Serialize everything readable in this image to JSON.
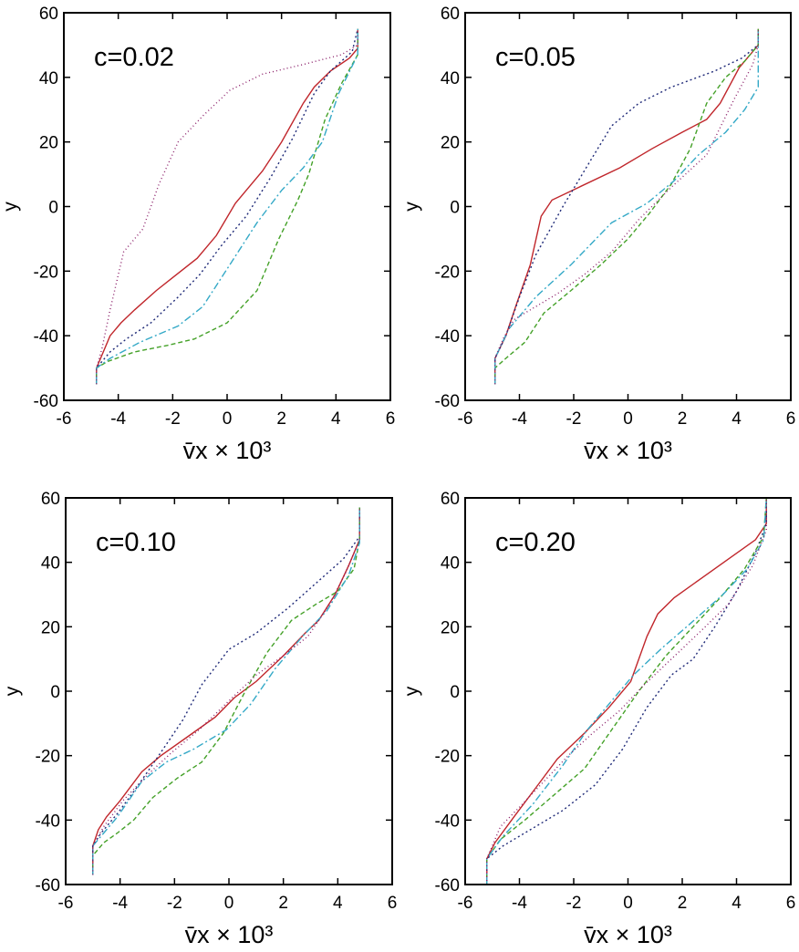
{
  "chart_data": [
    {
      "type": "line",
      "annotation": "c=0.02",
      "xlabel": "v̄x × 10³",
      "ylabel": "y",
      "xlim": [
        -6,
        6
      ],
      "ylim": [
        -60,
        60
      ],
      "xticks": [
        -6,
        -4,
        -2,
        0,
        2,
        4,
        6
      ],
      "yticks": [
        -60,
        -40,
        -20,
        0,
        20,
        40,
        60
      ],
      "series": [
        {
          "name": "red",
          "color": "#c0262b",
          "dash": "",
          "x": [
            -4.8,
            -4.8,
            -4.6,
            -4.3,
            -3.9,
            -3.4,
            -2.6,
            -2.0,
            -1.1,
            -0.4,
            0.3,
            0.7,
            1.3,
            2.0,
            2.8,
            3.2,
            3.8,
            4.5,
            4.8,
            4.8
          ],
          "y": [
            -55,
            -50,
            -46,
            -40,
            -36,
            -32,
            -26,
            -22,
            -16,
            -9,
            1,
            5,
            11,
            20,
            32,
            37,
            42,
            46,
            49,
            55
          ]
        },
        {
          "name": "navy",
          "color": "#1f2a78",
          "dash": "2 3",
          "x": [
            -4.8,
            -4.8,
            -4.3,
            -3.7,
            -2.8,
            -1.8,
            -1.0,
            -0.2,
            0.7,
            1.6,
            2.4,
            3.2,
            3.8,
            4.6,
            4.8
          ],
          "y": [
            -55,
            -50,
            -45,
            -41,
            -36,
            -28,
            -21,
            -12,
            -3,
            9,
            21,
            35,
            42,
            48,
            55
          ]
        },
        {
          "name": "green",
          "color": "#44a128",
          "dash": "5 3",
          "x": [
            -4.8,
            -4.8,
            -4.4,
            -3.4,
            -2.2,
            -1.2,
            0.0,
            1.1,
            1.9,
            2.6,
            3.0,
            3.6,
            4.2,
            4.8,
            4.8
          ],
          "y": [
            -55,
            -50,
            -48,
            -45,
            -43,
            -41,
            -36,
            -26,
            -10,
            2,
            10,
            27,
            38,
            47,
            55
          ]
        },
        {
          "name": "cyan",
          "color": "#34a9c7",
          "dash": "8 3 2 3",
          "x": [
            -4.8,
            -4.8,
            -4.3,
            -3.2,
            -1.8,
            -0.9,
            0.1,
            1.1,
            2.0,
            2.8,
            3.5,
            4.1,
            4.8,
            4.8
          ],
          "y": [
            -55,
            -50,
            -47,
            -42,
            -37,
            -31,
            -18,
            -5,
            5,
            12,
            20,
            35,
            47,
            55
          ]
        },
        {
          "name": "purple",
          "color": "#8a1d68",
          "dash": "1 3",
          "x": [
            -4.8,
            -4.8,
            -4.6,
            -4.3,
            -3.8,
            -3.1,
            -2.5,
            -1.8,
            -0.9,
            0.1,
            1.3,
            2.8,
            4.2,
            4.8,
            4.8
          ],
          "y": [
            -55,
            -50,
            -44,
            -32,
            -14,
            -7,
            7,
            20,
            28,
            36,
            41,
            44,
            47,
            50,
            55
          ]
        }
      ]
    },
    {
      "type": "line",
      "annotation": "c=0.05",
      "xlabel": "v̄x × 10³",
      "ylabel": "y",
      "xlim": [
        -6,
        6
      ],
      "ylim": [
        -60,
        60
      ],
      "xticks": [
        -6,
        -4,
        -2,
        0,
        2,
        4,
        6
      ],
      "yticks": [
        -60,
        -40,
        -20,
        0,
        20,
        40,
        60
      ],
      "series": [
        {
          "name": "red",
          "color": "#c0262b",
          "dash": "",
          "x": [
            -4.9,
            -4.9,
            -4.5,
            -4.1,
            -3.6,
            -3.2,
            -2.8,
            -1.8,
            -0.3,
            0.9,
            2.0,
            2.9,
            3.4,
            4.1,
            4.8,
            4.8
          ],
          "y": [
            -55,
            -47,
            -40,
            -30,
            -18,
            -3,
            2,
            6,
            12,
            18,
            23,
            27,
            32,
            43,
            50,
            55
          ]
        },
        {
          "name": "navy",
          "color": "#1f2a78",
          "dash": "2 3",
          "x": [
            -4.9,
            -4.9,
            -4.5,
            -4.0,
            -3.4,
            -2.4,
            -1.4,
            -0.6,
            0.4,
            1.6,
            3.2,
            4.2,
            4.8,
            4.8
          ],
          "y": [
            -55,
            -47,
            -40,
            -28,
            -15,
            0,
            14,
            25,
            32,
            37,
            42,
            46,
            50,
            55
          ]
        },
        {
          "name": "green",
          "color": "#44a128",
          "dash": "5 3",
          "x": [
            -4.9,
            -4.9,
            -4.5,
            -3.8,
            -3.1,
            -2.1,
            -1.0,
            0.0,
            0.8,
            1.6,
            2.3,
            2.9,
            3.6,
            4.3,
            4.8,
            4.8
          ],
          "y": [
            -55,
            -50,
            -47,
            -42,
            -33,
            -26,
            -18,
            -10,
            -2,
            7,
            18,
            32,
            40,
            45,
            50,
            55
          ]
        },
        {
          "name": "cyan",
          "color": "#34a9c7",
          "dash": "8 3 2 3",
          "x": [
            -4.9,
            -4.9,
            -4.4,
            -3.4,
            -2.1,
            -0.6,
            0.7,
            1.7,
            2.6,
            3.6,
            4.3,
            4.8,
            4.8
          ],
          "y": [
            -55,
            -47,
            -38,
            -28,
            -18,
            -5,
            1,
            8,
            16,
            23,
            30,
            37,
            55
          ]
        },
        {
          "name": "purple",
          "color": "#8a1d68",
          "dash": "1 3",
          "x": [
            -4.9,
            -4.9,
            -4.6,
            -4.2,
            -3.6,
            -2.6,
            -1.6,
            -0.6,
            0.4,
            1.6,
            2.9,
            3.9,
            4.6,
            4.8,
            4.8
          ],
          "y": [
            -55,
            -47,
            -41,
            -35,
            -32,
            -27,
            -21,
            -14,
            -4,
            6,
            16,
            33,
            44,
            50,
            55
          ]
        }
      ]
    },
    {
      "type": "line",
      "annotation": "c=0.10",
      "xlabel": "v̄x × 10³",
      "ylabel": "y",
      "xlim": [
        -6,
        6
      ],
      "ylim": [
        -60,
        60
      ],
      "xticks": [
        -6,
        -4,
        -2,
        0,
        2,
        4,
        6
      ],
      "yticks": [
        -60,
        -40,
        -20,
        0,
        20,
        40,
        60
      ],
      "series": [
        {
          "name": "red",
          "color": "#c0262b",
          "dash": "",
          "x": [
            -5.0,
            -5.0,
            -4.8,
            -4.5,
            -4.0,
            -3.2,
            -2.5,
            -1.5,
            -0.5,
            0.2,
            1.0,
            2.0,
            2.8,
            3.3,
            3.9,
            4.4,
            4.8,
            4.8
          ],
          "y": [
            -57,
            -48,
            -43,
            -39,
            -34,
            -25,
            -20,
            -14,
            -8,
            -2,
            3,
            11,
            18,
            22,
            30,
            39,
            47,
            57
          ]
        },
        {
          "name": "navy",
          "color": "#1f2a78",
          "dash": "2 3",
          "x": [
            -5.0,
            -5.0,
            -4.7,
            -4.1,
            -3.4,
            -2.5,
            -1.7,
            -1.0,
            0.0,
            1.0,
            2.2,
            3.4,
            4.2,
            4.8,
            4.8
          ],
          "y": [
            -57,
            -48,
            -44,
            -38,
            -30,
            -19,
            -9,
            2,
            13,
            18,
            26,
            35,
            41,
            48,
            57
          ]
        },
        {
          "name": "green",
          "color": "#44a128",
          "dash": "5 3",
          "x": [
            -5.0,
            -5.0,
            -4.6,
            -4.1,
            -3.5,
            -2.8,
            -1.9,
            -1.0,
            -0.2,
            0.6,
            1.4,
            2.3,
            3.2,
            4.0,
            4.6,
            4.8,
            4.8
          ],
          "y": [
            -57,
            -51,
            -47,
            -44,
            -40,
            -33,
            -27,
            -22,
            -13,
            0,
            12,
            22,
            27,
            31,
            38,
            47,
            57
          ]
        },
        {
          "name": "cyan",
          "color": "#34a9c7",
          "dash": "8 3 2 3",
          "x": [
            -5.0,
            -5.0,
            -4.7,
            -4.1,
            -3.2,
            -2.3,
            -1.3,
            -0.1,
            0.8,
            1.7,
            2.7,
            3.6,
            4.4,
            4.8,
            4.8
          ],
          "y": [
            -57,
            -48,
            -45,
            -39,
            -28,
            -22,
            -18,
            -12,
            -4,
            7,
            17,
            25,
            36,
            46,
            57
          ]
        },
        {
          "name": "purple",
          "color": "#8a1d68",
          "dash": "1 3",
          "x": [
            -5.0,
            -5.0,
            -4.6,
            -3.9,
            -3.0,
            -2.1,
            -1.1,
            0.0,
            1.0,
            2.0,
            2.9,
            3.7,
            4.3,
            4.8,
            4.8
          ],
          "y": [
            -57,
            -48,
            -42,
            -34,
            -26,
            -19,
            -12,
            -3,
            5,
            11,
            17,
            27,
            37,
            47,
            57
          ]
        }
      ]
    },
    {
      "type": "line",
      "annotation": "c=0.20",
      "xlabel": "v̄x × 10³",
      "ylabel": "y",
      "xlim": [
        -6,
        6
      ],
      "ylim": [
        -60,
        60
      ],
      "xticks": [
        -6,
        -4,
        -2,
        0,
        2,
        4,
        6
      ],
      "yticks": [
        -60,
        -40,
        -20,
        0,
        20,
        40,
        60
      ],
      "series": [
        {
          "name": "red",
          "color": "#c0262b",
          "dash": "",
          "x": [
            -5.2,
            -5.2,
            -4.9,
            -4.2,
            -3.4,
            -2.6,
            -1.6,
            -0.7,
            0.1,
            0.7,
            1.1,
            1.7,
            2.7,
            3.7,
            4.7,
            5.1,
            5.1
          ],
          "y": [
            -60,
            -52,
            -47,
            -39,
            -30,
            -21,
            -13,
            -5,
            3,
            17,
            24,
            29,
            35,
            41,
            47,
            52,
            60
          ]
        },
        {
          "name": "navy",
          "color": "#1f2a78",
          "dash": "2 3",
          "x": [
            -5.2,
            -5.2,
            -4.6,
            -3.6,
            -2.4,
            -1.2,
            -0.2,
            0.7,
            1.6,
            2.4,
            3.2,
            4.0,
            4.7,
            5.1,
            5.1
          ],
          "y": [
            -60,
            -52,
            -48,
            -43,
            -37,
            -29,
            -18,
            -5,
            5,
            10,
            20,
            31,
            43,
            52,
            60
          ]
        },
        {
          "name": "green",
          "color": "#44a128",
          "dash": "5 3",
          "x": [
            -5.2,
            -5.2,
            -4.7,
            -3.8,
            -2.7,
            -1.6,
            -0.6,
            0.4,
            1.4,
            2.4,
            3.4,
            4.3,
            5.0,
            5.1
          ],
          "y": [
            -60,
            -52,
            -46,
            -40,
            -32,
            -24,
            -12,
            0,
            11,
            20,
            29,
            38,
            48,
            60
          ]
        },
        {
          "name": "cyan",
          "color": "#34a9c7",
          "dash": "8 3 2 3",
          "x": [
            -5.2,
            -5.2,
            -4.6,
            -3.5,
            -2.4,
            -1.5,
            -0.6,
            0.2,
            1.2,
            2.3,
            3.5,
            4.4,
            5.0,
            5.1
          ],
          "y": [
            -60,
            -52,
            -45,
            -35,
            -23,
            -12,
            -3,
            5,
            13,
            21,
            30,
            38,
            47,
            60
          ]
        },
        {
          "name": "purple",
          "color": "#8a1d68",
          "dash": "1 3",
          "x": [
            -5.2,
            -5.2,
            -4.7,
            -4.0,
            -3.1,
            -2.2,
            -1.3,
            -0.3,
            0.6,
            1.6,
            2.6,
            3.7,
            4.6,
            5.1,
            5.1
          ],
          "y": [
            -60,
            -52,
            -42,
            -36,
            -28,
            -20,
            -13,
            -6,
            2,
            10,
            18,
            27,
            39,
            50,
            60
          ]
        }
      ]
    }
  ]
}
